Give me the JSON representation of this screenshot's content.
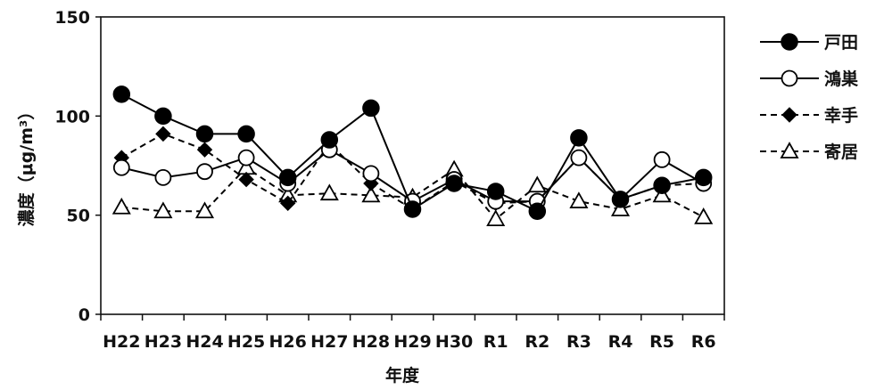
{
  "chart_data": {
    "type": "line",
    "categories": [
      "H22",
      "H23",
      "H24",
      "H25",
      "H26",
      "H27",
      "H28",
      "H29",
      "H30",
      "R1",
      "R2",
      "R3",
      "R4",
      "R5",
      "R6"
    ],
    "xlabel": "年度",
    "ylabel": "濃度（μg/m³）",
    "ylim": [
      0,
      150
    ],
    "yticks": [
      0,
      50,
      100,
      150
    ],
    "grid": false,
    "legend_position": "right",
    "series": [
      {
        "name": "戸田",
        "line_style": "solid",
        "marker": "filled-circle",
        "values": [
          111,
          100,
          91,
          91,
          69,
          88,
          104,
          53,
          66,
          62,
          52,
          89,
          58,
          65,
          69
        ]
      },
      {
        "name": "鴻巣",
        "line_style": "solid",
        "marker": "open-circle",
        "values": [
          74,
          69,
          72,
          79,
          66,
          83,
          71,
          57,
          68,
          57,
          57,
          79,
          58,
          78,
          66
        ]
      },
      {
        "name": "幸手",
        "line_style": "dashed",
        "marker": "filled-diamond",
        "values": [
          79,
          91,
          83,
          68,
          56,
          86,
          66,
          53,
          67,
          56,
          57,
          79,
          58,
          65,
          66
        ]
      },
      {
        "name": "寄居",
        "line_style": "dashed",
        "marker": "open-triangle",
        "values": [
          54,
          52,
          52,
          74,
          60,
          61,
          60,
          59,
          73,
          48,
          65,
          57,
          53,
          60,
          49
        ]
      }
    ]
  }
}
